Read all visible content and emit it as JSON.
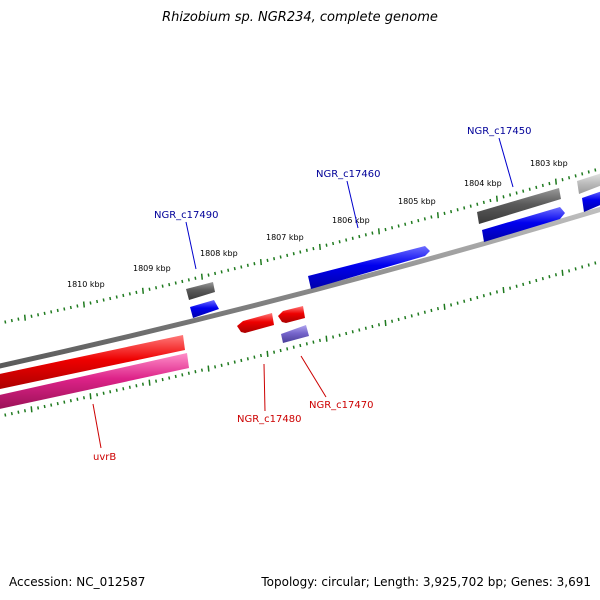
{
  "title": "Rhizobium sp. NGR234, complete genome",
  "footer": {
    "accession": "Accession: NC_012587",
    "topology": "Topology: circular; Length: 3,925,702 bp; Genes: 3,691"
  },
  "colors": {
    "backbone": "#8a8a8a",
    "tick_green": "#1f7a1f",
    "forward_blue": "#0000ee",
    "reverse_red": "#ee0000",
    "gray_block": "#5a5a5a",
    "purple_block": "#7766cc",
    "pink_block": "#dd2288",
    "label_blue": "#000099",
    "label_red": "#cc0000"
  },
  "tick_labels": [
    "1810 kbp",
    "1809 kbp",
    "1808 kbp",
    "1807 kbp",
    "1806 kbp",
    "1805 kbp",
    "1804 kbp",
    "1803 kbp"
  ],
  "gene_labels": {
    "forward": [
      "NGR_c17490",
      "NGR_c17460",
      "NGR_c17450"
    ],
    "reverse": [
      "NGR_c17480",
      "NGR_c17470",
      "uvrB"
    ]
  }
}
